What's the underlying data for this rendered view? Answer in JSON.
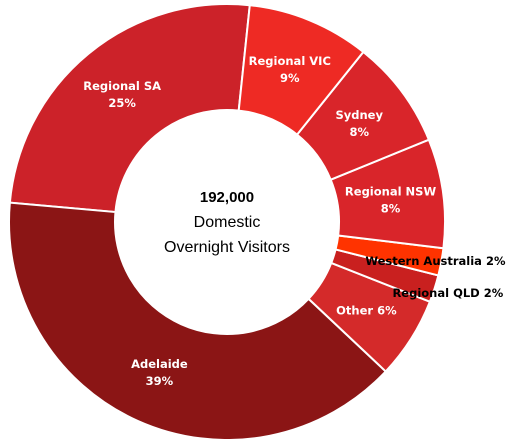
{
  "chart_data": {
    "type": "donut",
    "categories": [
      "Regional VIC",
      "Sydney",
      "Regional NSW",
      "Western Australia",
      "Regional QLD",
      "Other",
      "Adelaide",
      "Regional SA"
    ],
    "values": [
      9,
      8,
      8,
      2,
      2,
      6,
      39,
      25
    ],
    "value_labels": [
      "9%",
      "8%",
      "8%",
      "2%",
      "2%",
      "6%",
      "39%",
      "25%"
    ],
    "colors": [
      "#ee2a24",
      "#d9252a",
      "#d9252a",
      "#ff3300",
      "#c9201f",
      "#d42a2a",
      "#8b1515",
      "#cc2229"
    ],
    "center_value": "192,000",
    "center_label": [
      "Domestic",
      "Overnight Visitors"
    ]
  }
}
